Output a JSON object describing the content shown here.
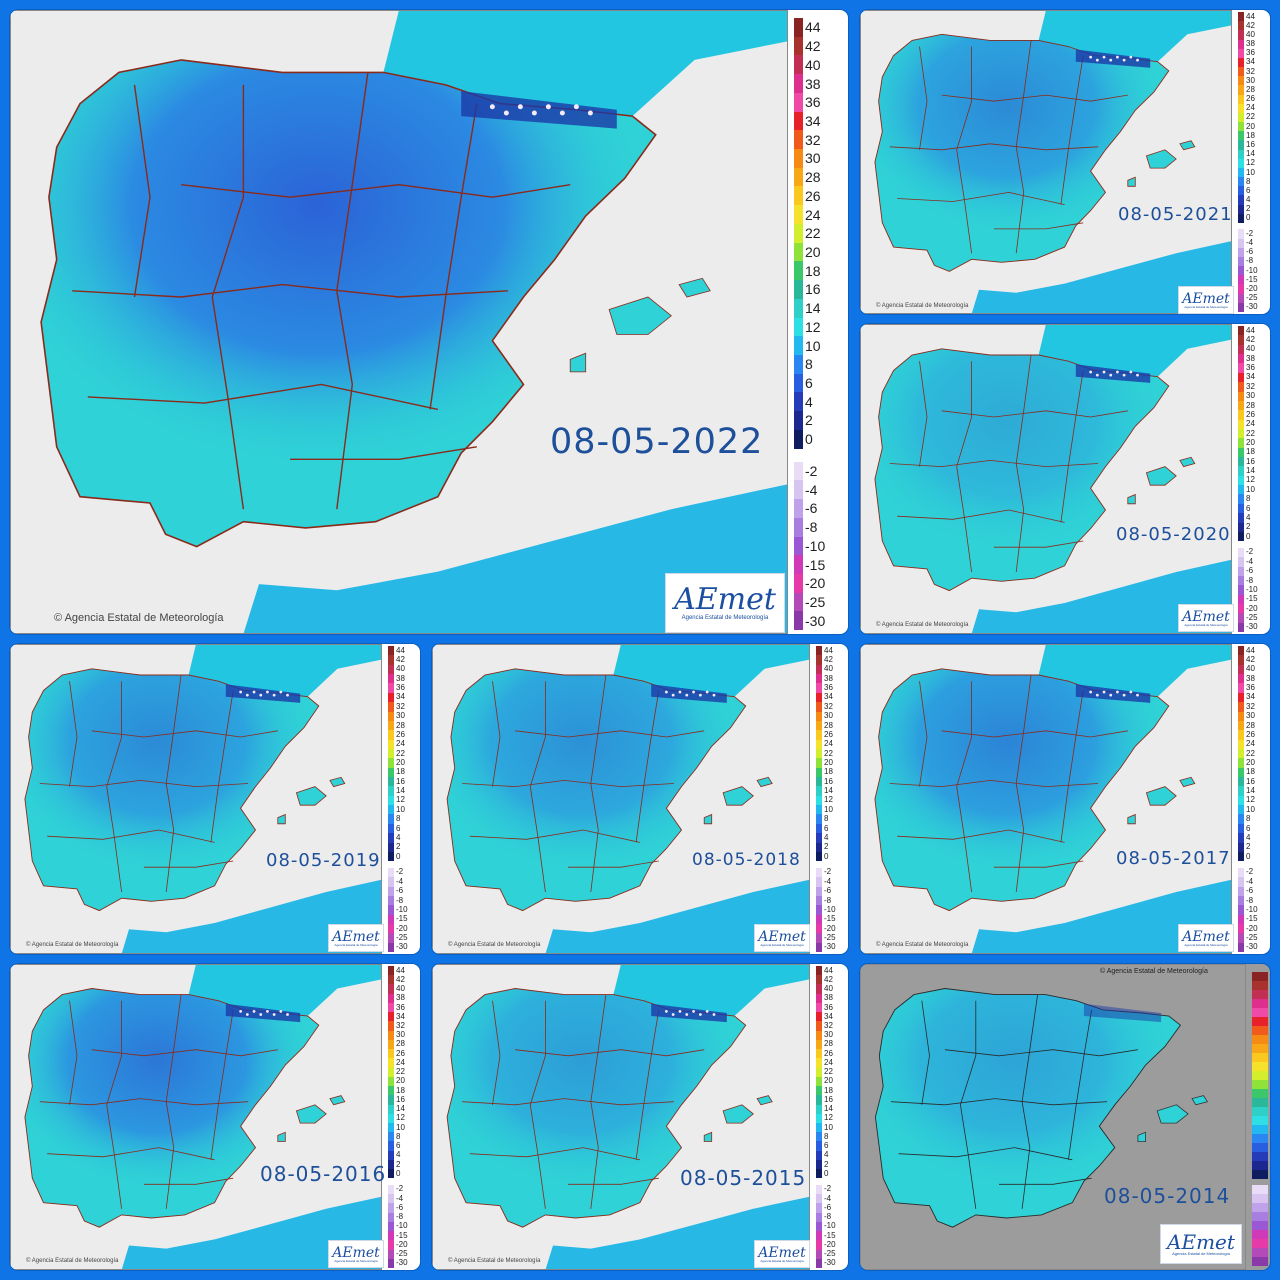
{
  "legend": {
    "positive": [
      {
        "label": "44",
        "color": "#8a2424"
      },
      {
        "label": "42",
        "color": "#a8322e"
      },
      {
        "label": "40",
        "color": "#c22f55"
      },
      {
        "label": "38",
        "color": "#de2f8e"
      },
      {
        "label": "36",
        "color": "#f04aa8"
      },
      {
        "label": "34",
        "color": "#e8202a"
      },
      {
        "label": "32",
        "color": "#f05a1a"
      },
      {
        "label": "30",
        "color": "#f58a14"
      },
      {
        "label": "28",
        "color": "#f8a816"
      },
      {
        "label": "26",
        "color": "#fbc820"
      },
      {
        "label": "24",
        "color": "#f6e22a"
      },
      {
        "label": "22",
        "color": "#d2ee2c"
      },
      {
        "label": "20",
        "color": "#8ee23a"
      },
      {
        "label": "18",
        "color": "#3cc86a"
      },
      {
        "label": "16",
        "color": "#2bb89a"
      },
      {
        "label": "14",
        "color": "#2fd0c8"
      },
      {
        "label": "12",
        "color": "#2ee0e6"
      },
      {
        "label": "10",
        "color": "#22b8f0"
      },
      {
        "label": "8",
        "color": "#2a86f0"
      },
      {
        "label": "6",
        "color": "#2a5ee0"
      },
      {
        "label": "4",
        "color": "#243cb8"
      },
      {
        "label": "2",
        "color": "#1c2890"
      },
      {
        "label": "0",
        "color": "#101c60"
      }
    ],
    "negative": [
      {
        "label": "-2",
        "color": "#e8dcf6"
      },
      {
        "label": "-4",
        "color": "#d8c4f0"
      },
      {
        "label": "-6",
        "color": "#c0a2ea"
      },
      {
        "label": "-8",
        "color": "#a87ee0"
      },
      {
        "label": "-10",
        "color": "#9a58d4"
      },
      {
        "label": "-15",
        "color": "#d03ab8"
      },
      {
        "label": "-20",
        "color": "#e63aa8"
      },
      {
        "label": "-25",
        "color": "#b44ab8"
      },
      {
        "label": "-30",
        "color": "#8a3aa8"
      }
    ]
  },
  "panels": [
    {
      "date": "08-05-2022",
      "copyright": "Agencia Estatal de Meteorología",
      "logo": "AEmet",
      "logo_sub": "Agencia Estatal de Meteorología",
      "cold": 0.85,
      "pyrenees_snow": true
    },
    {
      "date": "08-05-2021",
      "copyright": "Agencia Estatal de Meteorología",
      "logo": "AEmet",
      "logo_sub": "Agencia Estatal de Meteorología",
      "cold": 0.55,
      "pyrenees_snow": true
    },
    {
      "date": "08-05-2020",
      "copyright": "Agencia Estatal de Meteorología",
      "logo": "AEmet",
      "logo_sub": "Agencia Estatal de Meteorología",
      "cold": 0.3,
      "pyrenees_snow": true
    },
    {
      "date": "08-05-2019",
      "copyright": "Agencia Estatal de Meteorología",
      "logo": "AEmet",
      "logo_sub": "Agencia Estatal de Meteorología",
      "cold": 0.55,
      "pyrenees_snow": true
    },
    {
      "date": "08-05-2018",
      "copyright": "Agencia Estatal de Meteorología",
      "logo": "AEmet",
      "logo_sub": "Agencia Estatal de Meteorología",
      "cold": 0.5,
      "pyrenees_snow": true
    },
    {
      "date": "08-05-2017",
      "copyright": "Agencia Estatal de Meteorología",
      "logo": "AEmet",
      "logo_sub": "Agencia Estatal de Meteorología",
      "cold": 0.6,
      "pyrenees_snow": true
    },
    {
      "date": "08-05-2016",
      "copyright": "Agencia Estatal de Meteorología",
      "logo": "AEmet",
      "logo_sub": "Agencia Estatal de Meteorología",
      "cold": 0.7,
      "pyrenees_snow": true
    },
    {
      "date": "08-05-2015",
      "copyright": "Agencia Estatal de Meteorología",
      "logo": "AEmet",
      "logo_sub": "Agencia Estatal de Meteorología",
      "cold": 0.4,
      "pyrenees_snow": true
    },
    {
      "date": "08-05-2014",
      "copyright": "Agencia Estatal de Meteorología",
      "logo": "AEmet",
      "logo_sub": "Agencia Estatal de Meteorología",
      "cold": 0.35,
      "pyrenees_snow": false
    }
  ]
}
